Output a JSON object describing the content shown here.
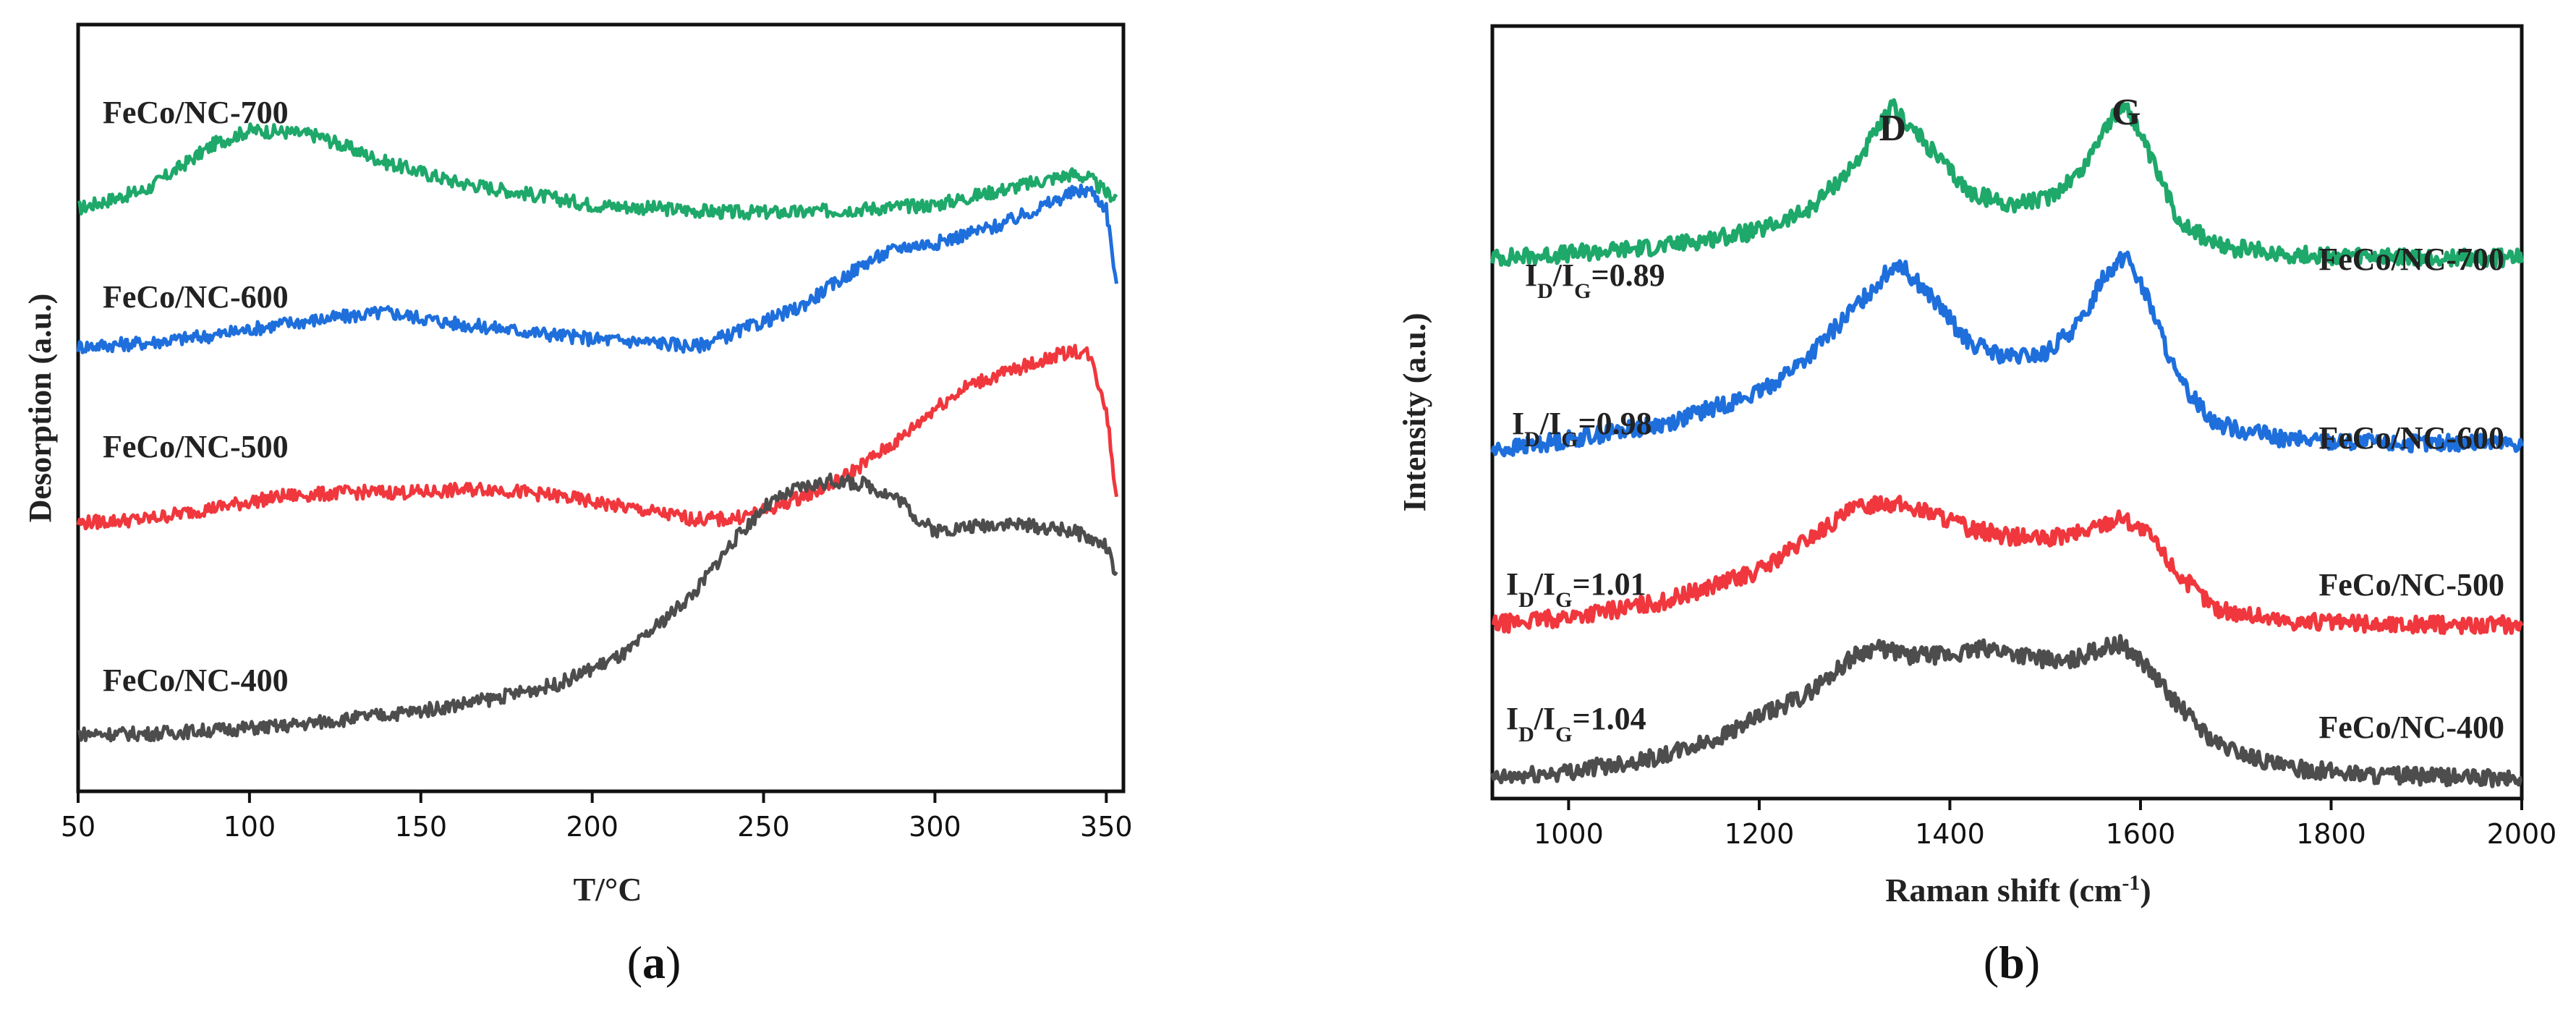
{
  "figure": {
    "panels": [
      "(a)",
      "(b)"
    ]
  },
  "chart_data": [
    {
      "type": "line",
      "panel": "(a)",
      "title": "",
      "xlabel": "T/°C",
      "ylabel": "Desorption (a.u.)",
      "xlim": [
        50,
        355
      ],
      "ylim": [
        0,
        10
      ],
      "xticks": [
        50,
        100,
        150,
        200,
        250,
        300,
        350
      ],
      "grid": false,
      "series": [
        {
          "name": "FeCo/NC-700",
          "color": "#1ea86a",
          "x": [
            50,
            70,
            90,
            100,
            110,
            120,
            140,
            160,
            180,
            200,
            220,
            240,
            260,
            280,
            300,
            320,
            340,
            345,
            350,
            353
          ],
          "y": [
            7.6,
            7.85,
            8.45,
            8.62,
            8.6,
            8.55,
            8.2,
            7.95,
            7.8,
            7.65,
            7.6,
            7.55,
            7.55,
            7.6,
            7.65,
            7.85,
            8.05,
            8.0,
            7.8,
            7.75
          ]
        },
        {
          "name": "FeCo/NC-600",
          "color": "#1e6fdc",
          "x": [
            50,
            70,
            90,
            110,
            130,
            140,
            160,
            180,
            200,
            220,
            230,
            240,
            260,
            280,
            290,
            300,
            320,
            340,
            345,
            350,
            353
          ],
          "y": [
            5.8,
            5.85,
            5.95,
            6.1,
            6.2,
            6.25,
            6.1,
            6.0,
            5.9,
            5.85,
            5.8,
            5.95,
            6.3,
            6.9,
            7.1,
            7.15,
            7.4,
            7.8,
            7.85,
            7.6,
            6.6
          ]
        },
        {
          "name": "FeCo/NC-500",
          "color": "#f0373d",
          "x": [
            50,
            70,
            90,
            110,
            130,
            150,
            170,
            190,
            210,
            230,
            240,
            250,
            270,
            290,
            300,
            310,
            320,
            340,
            345,
            350,
            353
          ],
          "y": [
            3.5,
            3.55,
            3.7,
            3.85,
            3.9,
            3.9,
            3.95,
            3.85,
            3.7,
            3.55,
            3.55,
            3.65,
            4.0,
            4.6,
            5.0,
            5.3,
            5.45,
            5.75,
            5.7,
            5.0,
            3.8
          ]
        },
        {
          "name": "FeCo/NC-400",
          "color": "#4d4d4d",
          "x": [
            50,
            70,
            90,
            110,
            130,
            150,
            170,
            190,
            210,
            230,
            240,
            250,
            260,
            270,
            280,
            290,
            295,
            300,
            320,
            340,
            350,
            353
          ],
          "y": [
            0.75,
            0.75,
            0.8,
            0.85,
            0.95,
            1.05,
            1.2,
            1.4,
            1.8,
            2.6,
            3.2,
            3.7,
            3.95,
            4.05,
            4.0,
            3.8,
            3.55,
            3.4,
            3.5,
            3.4,
            3.2,
            2.8
          ]
        }
      ],
      "annotations": [
        "FeCo/NC-700",
        "FeCo/NC-600",
        "FeCo/NC-500",
        "FeCo/NC-400"
      ]
    },
    {
      "type": "line",
      "panel": "(b)",
      "title": "",
      "xlabel": "Raman shift (cm⁻¹)",
      "ylabel": "Intensity (a.u.)",
      "xlim": [
        920,
        2000
      ],
      "ylim": [
        0,
        10
      ],
      "xticks": [
        1000,
        1200,
        1400,
        1600,
        1800,
        2000
      ],
      "grid": false,
      "peak_labels": [
        "D",
        "G"
      ],
      "peak_positions": [
        1340,
        1585
      ],
      "series": [
        {
          "name": "FeCo/NC-700",
          "color": "#1ea86a",
          "ratio": "0.89",
          "x": [
            920,
            1000,
            1100,
            1200,
            1250,
            1300,
            1340,
            1380,
            1420,
            1460,
            1500,
            1540,
            1560,
            1585,
            1610,
            1640,
            1680,
            1750,
            1850,
            2000
          ],
          "y": [
            7.0,
            7.05,
            7.15,
            7.35,
            7.6,
            8.2,
            8.95,
            8.4,
            7.85,
            7.7,
            7.75,
            8.15,
            8.65,
            9.0,
            8.3,
            7.5,
            7.15,
            7.05,
            7.0,
            7.0
          ]
        },
        {
          "name": "FeCo/NC-600",
          "color": "#1e6fdc",
          "ratio": "0.98",
          "x": [
            920,
            1000,
            1100,
            1200,
            1250,
            1300,
            1345,
            1380,
            1420,
            1460,
            1500,
            1540,
            1560,
            1585,
            1610,
            1640,
            1680,
            1750,
            1850,
            2000
          ],
          "y": [
            4.5,
            4.65,
            4.85,
            5.25,
            5.7,
            6.35,
            6.95,
            6.5,
            5.9,
            5.7,
            5.75,
            6.2,
            6.75,
            7.05,
            6.4,
            5.4,
            4.85,
            4.65,
            4.6,
            4.6
          ]
        },
        {
          "name": "FeCo/NC-500",
          "color": "#f0373d",
          "ratio": "1.01",
          "x": [
            920,
            1000,
            1100,
            1200,
            1250,
            1300,
            1330,
            1380,
            1420,
            1460,
            1500,
            1540,
            1580,
            1610,
            1640,
            1680,
            1750,
            1850,
            2000
          ],
          "y": [
            2.25,
            2.35,
            2.55,
            2.95,
            3.35,
            3.75,
            3.85,
            3.7,
            3.5,
            3.4,
            3.35,
            3.45,
            3.65,
            3.4,
            2.9,
            2.45,
            2.3,
            2.25,
            2.25
          ]
        },
        {
          "name": "FeCo/NC-400",
          "color": "#4d4d4d",
          "ratio": "1.04",
          "x": [
            920,
            1000,
            1100,
            1150,
            1200,
            1250,
            1300,
            1320,
            1360,
            1400,
            1440,
            1480,
            1520,
            1560,
            1580,
            1600,
            1640,
            1680,
            1750,
            1850,
            2000
          ],
          "y": [
            0.25,
            0.35,
            0.55,
            0.75,
            1.05,
            1.35,
            1.85,
            1.95,
            1.85,
            1.85,
            1.95,
            1.85,
            1.75,
            1.95,
            2.0,
            1.8,
            1.2,
            0.7,
            0.4,
            0.3,
            0.25
          ]
        }
      ],
      "annotations": [
        "FeCo/NC-700",
        "FeCo/NC-600",
        "FeCo/NC-500",
        "FeCo/NC-400"
      ],
      "ratio_prefix_main": "I",
      "ratio_sub_d": "D",
      "ratio_slash": "/",
      "ratio_sub_g": "G",
      "ratio_eq": "="
    }
  ]
}
